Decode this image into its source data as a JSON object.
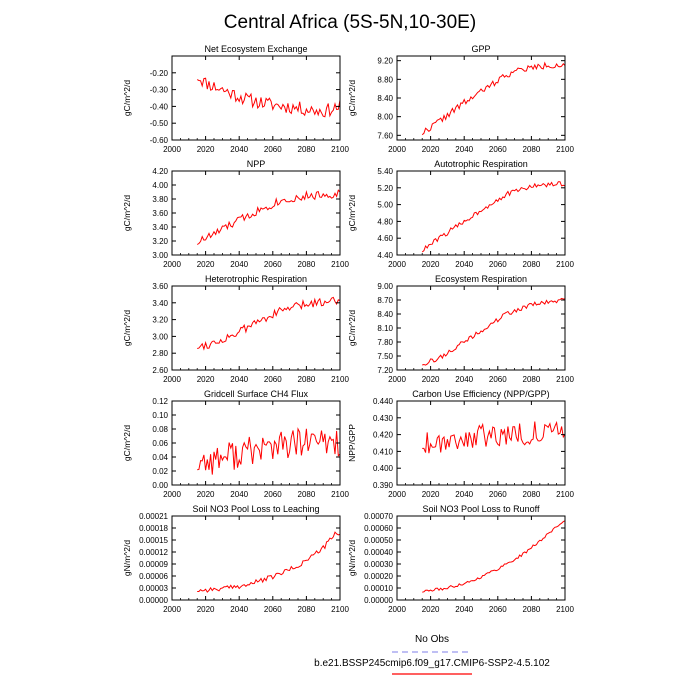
{
  "figure": {
    "title": "Central Africa (5S-5N,10-30E)",
    "legend": [
      {
        "label": "No Obs",
        "color": "#9999ee",
        "dash": true
      },
      {
        "label": "b.e21.BSSP245cmip6.f09_g17.CMIP6-SSP2-4.5.102",
        "color": "#ff0000",
        "dash": false
      }
    ]
  },
  "chart_data": [
    {
      "type": "line",
      "title": "Net Ecosystem Exchange",
      "ylabel": "gC/m^2/d",
      "xlim": [
        2000,
        2100
      ],
      "ylim": [
        -0.6,
        -0.1
      ],
      "xticks": [
        "2000",
        "2020",
        "2040",
        "2060",
        "2080",
        "2100"
      ],
      "yticks": [
        "-0.60",
        "-0.50",
        "-0.40",
        "-0.30",
        "-0.20"
      ],
      "ytick_values": [
        -0.6,
        -0.5,
        -0.4,
        -0.3,
        -0.2
      ],
      "x_start": 2015,
      "x_end": 2100,
      "keypoints": [
        [
          2015,
          -0.22
        ],
        [
          2020,
          -0.26
        ],
        [
          2030,
          -0.3
        ],
        [
          2045,
          -0.36
        ],
        [
          2060,
          -0.39
        ],
        [
          2075,
          -0.41
        ],
        [
          2090,
          -0.43
        ],
        [
          2100,
          -0.4
        ]
      ],
      "noise": 0.04,
      "seed": 11,
      "color": "#ff0000"
    },
    {
      "type": "line",
      "title": "GPP",
      "ylabel": "gC/m^2/d",
      "xlim": [
        2000,
        2100
      ],
      "ylim": [
        7.5,
        9.3
      ],
      "xticks": [
        "2000",
        "2020",
        "2040",
        "2060",
        "2080",
        "2100"
      ],
      "yticks": [
        "7.60",
        "8.00",
        "8.40",
        "8.80",
        "9.20"
      ],
      "ytick_values": [
        7.6,
        8.0,
        8.4,
        8.8,
        9.2
      ],
      "x_start": 2015,
      "x_end": 2100,
      "keypoints": [
        [
          2015,
          7.65
        ],
        [
          2025,
          7.9
        ],
        [
          2040,
          8.3
        ],
        [
          2055,
          8.65
        ],
        [
          2065,
          8.9
        ],
        [
          2075,
          9.02
        ],
        [
          2090,
          9.1
        ],
        [
          2100,
          9.12
        ]
      ],
      "noise": 0.07,
      "seed": 22,
      "color": "#ff0000"
    },
    {
      "type": "line",
      "title": "NPP",
      "ylabel": "gC/m^2/d",
      "xlim": [
        2000,
        2100
      ],
      "ylim": [
        3.0,
        4.2
      ],
      "xticks": [
        "2000",
        "2020",
        "2040",
        "2060",
        "2080",
        "2100"
      ],
      "yticks": [
        "3.00",
        "3.20",
        "3.40",
        "3.60",
        "3.80",
        "4.00",
        "4.20"
      ],
      "ytick_values": [
        3.0,
        3.2,
        3.4,
        3.6,
        3.8,
        4.0,
        4.2
      ],
      "x_start": 2015,
      "x_end": 2100,
      "keypoints": [
        [
          2015,
          3.18
        ],
        [
          2025,
          3.3
        ],
        [
          2040,
          3.5
        ],
        [
          2055,
          3.68
        ],
        [
          2065,
          3.78
        ],
        [
          2080,
          3.84
        ],
        [
          2100,
          3.88
        ]
      ],
      "noise": 0.06,
      "seed": 33,
      "color": "#ff0000"
    },
    {
      "type": "line",
      "title": "Autotrophic Respiration",
      "ylabel": "gC/m^2/d",
      "xlim": [
        2000,
        2100
      ],
      "ylim": [
        4.4,
        5.4
      ],
      "xticks": [
        "2000",
        "2020",
        "2040",
        "2060",
        "2080",
        "2100"
      ],
      "yticks": [
        "4.40",
        "4.60",
        "4.80",
        "5.00",
        "5.20",
        "5.40"
      ],
      "ytick_values": [
        4.4,
        4.6,
        4.8,
        5.0,
        5.2,
        5.4
      ],
      "x_start": 2015,
      "x_end": 2100,
      "keypoints": [
        [
          2015,
          4.45
        ],
        [
          2025,
          4.6
        ],
        [
          2040,
          4.8
        ],
        [
          2055,
          5.0
        ],
        [
          2065,
          5.12
        ],
        [
          2080,
          5.22
        ],
        [
          2100,
          5.25
        ]
      ],
      "noise": 0.03,
      "seed": 44,
      "color": "#ff0000"
    },
    {
      "type": "line",
      "title": "Heterotrophic Respiration",
      "ylabel": "gC/m^2/d",
      "xlim": [
        2000,
        2100
      ],
      "ylim": [
        2.6,
        3.6
      ],
      "xticks": [
        "2000",
        "2020",
        "2040",
        "2060",
        "2080",
        "2100"
      ],
      "yticks": [
        "2.60",
        "2.80",
        "3.00",
        "3.20",
        "3.40",
        "3.60"
      ],
      "ytick_values": [
        2.6,
        2.8,
        3.0,
        3.2,
        3.4,
        3.6
      ],
      "x_start": 2015,
      "x_end": 2100,
      "keypoints": [
        [
          2015,
          2.88
        ],
        [
          2025,
          2.92
        ],
        [
          2040,
          3.05
        ],
        [
          2055,
          3.22
        ],
        [
          2070,
          3.34
        ],
        [
          2085,
          3.4
        ],
        [
          2100,
          3.44
        ]
      ],
      "noise": 0.05,
      "seed": 55,
      "color": "#ff0000"
    },
    {
      "type": "line",
      "title": "Ecosystem Respiration",
      "ylabel": "gC/m^2/d",
      "xlim": [
        2000,
        2100
      ],
      "ylim": [
        7.2,
        9.0
      ],
      "xticks": [
        "2000",
        "2020",
        "2040",
        "2060",
        "2080",
        "2100"
      ],
      "yticks": [
        "7.20",
        "7.50",
        "7.80",
        "8.10",
        "8.40",
        "8.70",
        "9.00"
      ],
      "ytick_values": [
        7.2,
        7.5,
        7.8,
        8.1,
        8.4,
        8.7,
        9.0
      ],
      "x_start": 2015,
      "x_end": 2100,
      "keypoints": [
        [
          2015,
          7.33
        ],
        [
          2025,
          7.45
        ],
        [
          2040,
          7.8
        ],
        [
          2055,
          8.15
        ],
        [
          2065,
          8.4
        ],
        [
          2080,
          8.6
        ],
        [
          2100,
          8.7
        ]
      ],
      "noise": 0.05,
      "seed": 66,
      "color": "#ff0000"
    },
    {
      "type": "line",
      "title": "Gridcell Surface CH4 Flux",
      "ylabel": "gC/m^2/d",
      "xlim": [
        2000,
        2100
      ],
      "ylim": [
        0.0,
        0.12
      ],
      "xticks": [
        "2000",
        "2020",
        "2040",
        "2060",
        "2080",
        "2100"
      ],
      "yticks": [
        "0.00",
        "0.02",
        "0.04",
        "0.06",
        "0.08",
        "0.10",
        "0.12"
      ],
      "ytick_values": [
        0.0,
        0.02,
        0.04,
        0.06,
        0.08,
        0.1,
        0.12
      ],
      "x_start": 2015,
      "x_end": 2100,
      "keypoints": [
        [
          2015,
          0.032
        ],
        [
          2040,
          0.045
        ],
        [
          2060,
          0.055
        ],
        [
          2080,
          0.06
        ],
        [
          2100,
          0.062
        ]
      ],
      "noise": 0.022,
      "seed": 77,
      "color": "#ff0000"
    },
    {
      "type": "line",
      "title": "Carbon Use Efficiency (NPP/GPP)",
      "ylabel": "NPP/GPP",
      "xlim": [
        2000,
        2100
      ],
      "ylim": [
        0.39,
        0.44
      ],
      "xticks": [
        "2000",
        "2020",
        "2040",
        "2060",
        "2080",
        "2100"
      ],
      "yticks": [
        "0.390",
        "0.400",
        "0.410",
        "0.420",
        "0.430",
        "0.440"
      ],
      "ytick_values": [
        0.39,
        0.4,
        0.41,
        0.42,
        0.43,
        0.44
      ],
      "x_start": 2015,
      "x_end": 2100,
      "keypoints": [
        [
          2015,
          0.415
        ],
        [
          2040,
          0.418
        ],
        [
          2060,
          0.42
        ],
        [
          2080,
          0.421
        ],
        [
          2100,
          0.421
        ]
      ],
      "noise": 0.007,
      "seed": 88,
      "color": "#ff0000"
    },
    {
      "type": "line",
      "title": "Soil NO3 Pool Loss to Leaching",
      "ylabel": "gN/m^2/d",
      "xlim": [
        2000,
        2100
      ],
      "ylim": [
        0.0,
        0.00021
      ],
      "xticks": [
        "2000",
        "2020",
        "2040",
        "2060",
        "2080",
        "2100"
      ],
      "yticks": [
        "0.00000",
        "0.00003",
        "0.00006",
        "0.00009",
        "0.00012",
        "0.00015",
        "0.00018",
        "0.00021"
      ],
      "ytick_values": [
        0.0,
        3e-05,
        6e-05,
        9e-05,
        0.00012,
        0.00015,
        0.00018,
        0.00021
      ],
      "x_start": 2015,
      "x_end": 2100,
      "keypoints": [
        [
          2015,
          2.4e-05
        ],
        [
          2030,
          2.8e-05
        ],
        [
          2045,
          3.8e-05
        ],
        [
          2060,
          5.8e-05
        ],
        [
          2075,
          8.5e-05
        ],
        [
          2090,
          0.00013
        ],
        [
          2097,
          0.000165
        ],
        [
          2100,
          0.00016
        ]
      ],
      "noise": 6e-06,
      "seed": 99,
      "color": "#ff0000"
    },
    {
      "type": "line",
      "title": "Soil NO3 Pool Loss to Runoff",
      "ylabel": "gN/m^2/d",
      "xlim": [
        2000,
        2100
      ],
      "ylim": [
        0.0,
        0.0007
      ],
      "xticks": [
        "2000",
        "2020",
        "2040",
        "2060",
        "2080",
        "2100"
      ],
      "yticks": [
        "0.00000",
        "0.00010",
        "0.00020",
        "0.00030",
        "0.00040",
        "0.00050",
        "0.00060",
        "0.00070"
      ],
      "ytick_values": [
        0.0,
        0.0001,
        0.0002,
        0.0003,
        0.0004,
        0.0005,
        0.0006,
        0.0007
      ],
      "x_start": 2015,
      "x_end": 2100,
      "keypoints": [
        [
          2015,
          7e-05
        ],
        [
          2030,
          0.0001
        ],
        [
          2045,
          0.00016
        ],
        [
          2060,
          0.00026
        ],
        [
          2075,
          0.00038
        ],
        [
          2090,
          0.00055
        ],
        [
          2100,
          0.00067
        ]
      ],
      "noise": 1.2e-05,
      "seed": 111,
      "color": "#ff0000"
    }
  ]
}
